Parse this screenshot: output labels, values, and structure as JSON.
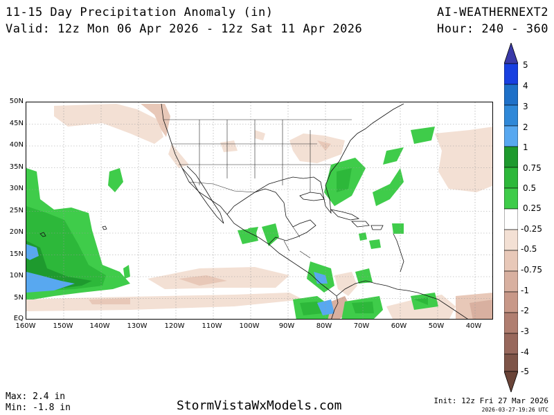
{
  "header": {
    "title": "11-15 Day Precipitation Anomaly (in)",
    "valid": "Valid: 12z Mon 06 Apr 2026 - 12z Sat 11 Apr 2026",
    "model": "AI-WEATHERNEXT2",
    "hour": "Hour: 240 - 360"
  },
  "map": {
    "lat_labels": [
      "50N",
      "45N",
      "40N",
      "35N",
      "30N",
      "25N",
      "20N",
      "15N",
      "10N",
      "5N",
      "EQ"
    ],
    "lon_labels": [
      "160W",
      "150W",
      "140W",
      "130W",
      "120W",
      "110W",
      "100W",
      "90W",
      "80W",
      "70W",
      "60W",
      "50W",
      "40W"
    ]
  },
  "colorbar": {
    "levels": [
      {
        "label": "5",
        "color": "#3a3aa8"
      },
      {
        "label": "4",
        "color": "#1840e0"
      },
      {
        "label": "3",
        "color": "#1e70c8"
      },
      {
        "label": "2",
        "color": "#58a8f0"
      },
      {
        "label": "1",
        "color": "#1e9a2e"
      },
      {
        "label": "0.75",
        "color": "#2db83a"
      },
      {
        "label": "0.5",
        "color": "#3fcc4a"
      },
      {
        "label": "0.25",
        "color": "#ffffff"
      },
      {
        "label": "-0.25",
        "color": "#f3e0d4"
      },
      {
        "label": "-0.5",
        "color": "#e8c8b8"
      },
      {
        "label": "-0.75",
        "color": "#d8b0a0"
      },
      {
        "label": "-1",
        "color": "#c89888"
      },
      {
        "label": "-2",
        "color": "#b07e70"
      },
      {
        "label": "-3",
        "color": "#98685c"
      },
      {
        "label": "-4",
        "color": "#7e5448"
      },
      {
        "label": "-5",
        "color": "#6a4438"
      }
    ]
  },
  "footer": {
    "max": "Max: 2.4 in",
    "min": "Min: -1.8 in",
    "site": "StormVistaWxModels.com",
    "init": "Init: 12z Fri 27 Mar 2026",
    "timestamp": "2026-03-27-19:26",
    "tz": "UTC"
  }
}
